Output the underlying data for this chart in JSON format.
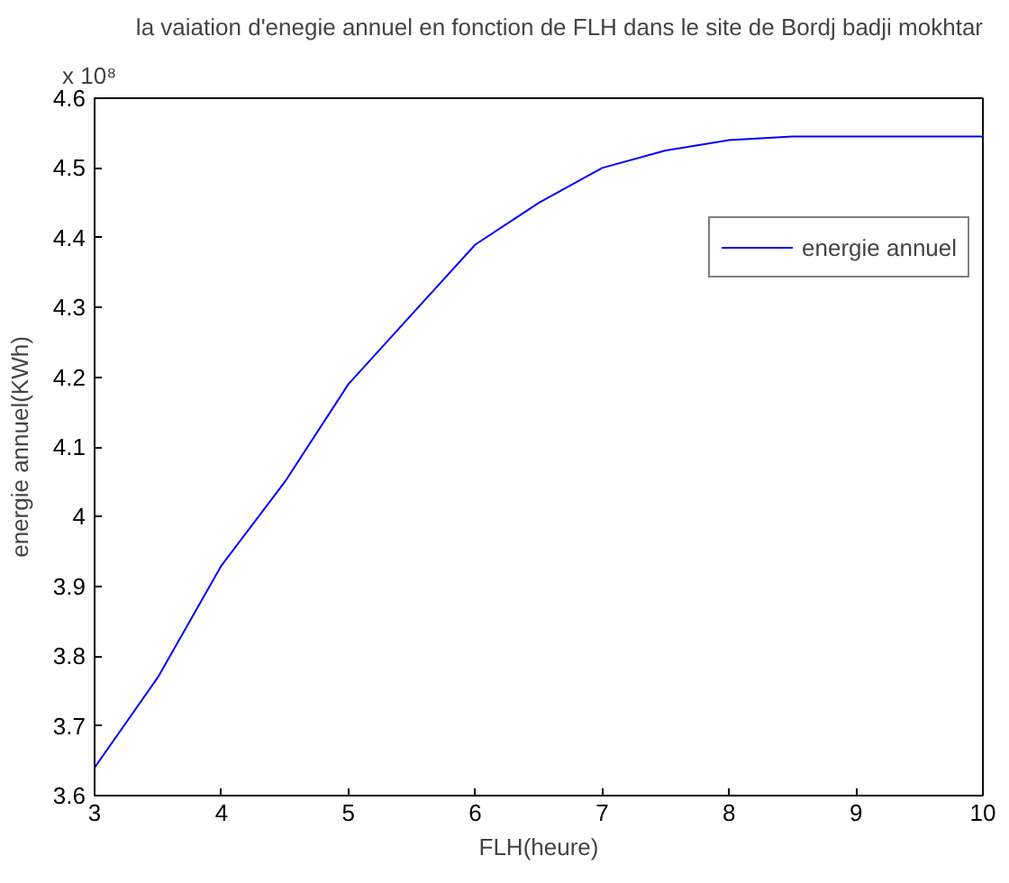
{
  "chart_data": {
    "type": "line",
    "title": "la vaiation d'enegie annuel en fonction de FLH dans le site de Bordj badji mokhtar",
    "xlabel": "FLH(heure)",
    "ylabel": "energie annuel(KWh)",
    "annotations": [
      "x 10⁸"
    ],
    "x": [
      3,
      3.5,
      4,
      4.5,
      5,
      5.5,
      6,
      6.5,
      7,
      7.5,
      8,
      8.5,
      9,
      9.5,
      10
    ],
    "series": [
      {
        "name": "energie annuel",
        "color": "#0000ff",
        "values": [
          3.64,
          3.77,
          3.93,
          4.05,
          4.19,
          4.29,
          4.39,
          4.45,
          4.5,
          4.525,
          4.54,
          4.545,
          4.545,
          4.545,
          4.545
        ]
      }
    ],
    "xlim": [
      3,
      10
    ],
    "xticks": [
      3,
      4,
      5,
      6,
      7,
      8,
      9,
      10
    ],
    "ylim": [
      3.6,
      4.6
    ],
    "yticks": [
      3.6,
      3.7,
      3.8,
      3.9,
      4,
      4.1,
      4.2,
      4.3,
      4.4,
      4.5,
      4.6
    ],
    "grid": false,
    "legend": "top right",
    "line_style": "solid"
  }
}
